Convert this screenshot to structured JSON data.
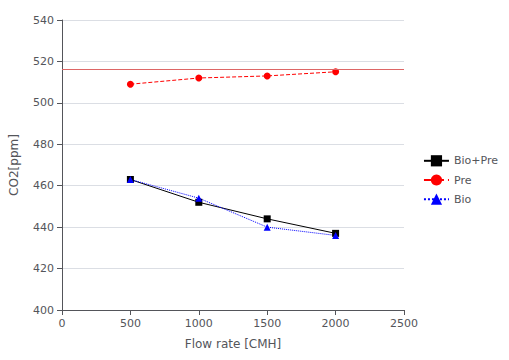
{
  "chart_data": {
    "type": "line",
    "x": [
      500,
      1000,
      1500,
      2000
    ],
    "series": [
      {
        "name": "Bio+Pre",
        "color": "black",
        "marker": "square",
        "line_style": "solid",
        "values": [
          463,
          452,
          444,
          437
        ]
      },
      {
        "name": "Pre",
        "color": "red",
        "marker": "circle",
        "line_style": "dashed",
        "values": [
          509,
          512,
          513,
          515
        ]
      },
      {
        "name": "Bio",
        "color": "blue",
        "marker": "triangle",
        "line_style": "dotted",
        "values": [
          463,
          454,
          440,
          436
        ]
      }
    ],
    "reference_line": {
      "value": 516,
      "color": "#dd6666"
    },
    "xlabel": "Flow rate [CMH]",
    "ylabel": "CO2[ppm]",
    "xlim": [
      0,
      2500
    ],
    "ylim": [
      400,
      540
    ],
    "xticks": [
      0,
      500,
      1000,
      1500,
      2000,
      2500
    ],
    "yticks": [
      400,
      420,
      440,
      460,
      480,
      500,
      520,
      540
    ],
    "grid": "y",
    "legend": "right"
  }
}
